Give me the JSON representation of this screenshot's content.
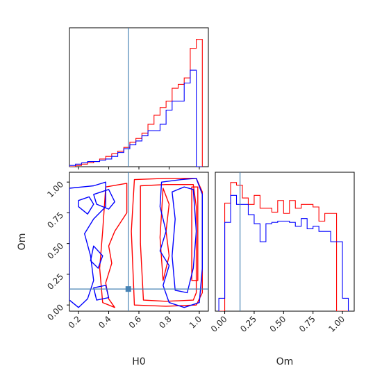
{
  "chart_data": {
    "type": "corner",
    "parameters": [
      "H0",
      "Om"
    ],
    "truth": {
      "H0": 0.53,
      "Om": 0.13
    },
    "colors": {
      "series_a": "#ff0000",
      "series_b": "#0000ff",
      "truth": "#4682b4",
      "axes": "#000000"
    },
    "panels": [
      {
        "id": "h0-hist",
        "type": "step-histogram",
        "xlim": [
          0.14,
          1.06
        ],
        "ylim": [
          0,
          1.08
        ],
        "bin_edges": [
          0.14,
          0.18,
          0.22,
          0.26,
          0.3,
          0.34,
          0.38,
          0.42,
          0.46,
          0.5,
          0.54,
          0.58,
          0.62,
          0.66,
          0.7,
          0.74,
          0.78,
          0.82,
          0.86,
          0.9,
          0.94,
          0.98,
          1.02
        ],
        "series": [
          {
            "key": "series_a",
            "values": [
              0.0,
              0.01,
              0.02,
              0.03,
              0.04,
              0.06,
              0.08,
              0.1,
              0.12,
              0.15,
              0.19,
              0.22,
              0.26,
              0.33,
              0.4,
              0.46,
              0.51,
              0.61,
              0.64,
              0.69,
              0.92,
              0.99
            ]
          },
          {
            "key": "series_b",
            "values": [
              0.01,
              0.02,
              0.03,
              0.04,
              0.04,
              0.05,
              0.06,
              0.08,
              0.11,
              0.14,
              0.17,
              0.2,
              0.24,
              0.28,
              0.28,
              0.33,
              0.44,
              0.51,
              0.51,
              0.65,
              0.75,
              0.0
            ]
          }
        ]
      },
      {
        "id": "h0-om-contour",
        "type": "contour",
        "xlim": [
          0.14,
          1.06
        ],
        "ylim": [
          -0.05,
          1.08
        ],
        "x_ticks": [
          "0.2",
          "0.4",
          "0.6",
          "0.8",
          "1.0"
        ],
        "x_tick_values": [
          0.2,
          0.4,
          0.6,
          0.8,
          1.0
        ],
        "y_ticks": [
          "0.00",
          "0.25",
          "0.50",
          "0.75",
          "1.00"
        ],
        "y_tick_values": [
          0,
          0.25,
          0.5,
          0.75,
          1.0
        ],
        "series": [
          {
            "key": "series_a",
            "contours": [
              [
                [
                  0.57,
                  1.02
                ],
                [
                  0.78,
                  1.03
                ],
                [
                  0.98,
                  1.03
                ],
                [
                  1.02,
                  0.92
                ],
                [
                  1.02,
                  0.1
                ],
                [
                  0.98,
                  0.0
                ],
                [
                  0.78,
                  -0.01
                ],
                [
                  0.57,
                  0.0
                ],
                [
                  0.55,
                  0.6
                ],
                [
                  0.57,
                  1.02
                ]
              ],
              [
                [
                  0.61,
                  0.97
                ],
                [
                  0.78,
                  0.98
                ],
                [
                  0.96,
                  0.98
                ],
                [
                  0.98,
                  0.8
                ],
                [
                  0.98,
                  0.1
                ],
                [
                  0.96,
                  0.04
                ],
                [
                  0.78,
                  0.03
                ],
                [
                  0.63,
                  0.04
                ],
                [
                  0.61,
                  0.5
                ],
                [
                  0.61,
                  0.97
                ]
              ],
              [
                [
                  0.38,
                  0.96
                ],
                [
                  0.52,
                  0.99
                ],
                [
                  0.52,
                  0.75
                ],
                [
                  0.44,
                  0.6
                ],
                [
                  0.4,
                  0.48
                ],
                [
                  0.42,
                  0.34
                ],
                [
                  0.38,
                  0.18
                ],
                [
                  0.4,
                  0.05
                ],
                [
                  0.44,
                  -0.02
                ],
                [
                  0.36,
                  0.02
                ],
                [
                  0.34,
                  0.3
                ],
                [
                  0.36,
                  0.6
                ],
                [
                  0.38,
                  0.96
                ]
              ],
              [
                [
                  0.76,
                  0.95
                ],
                [
                  0.8,
                  0.82
                ],
                [
                  0.78,
                  0.6
                ],
                [
                  0.8,
                  0.4
                ],
                [
                  0.76,
                  0.2
                ],
                [
                  0.74,
                  0.55
                ],
                [
                  0.76,
                  0.95
                ]
              ],
              [
                [
                  0.95,
                  0.96
                ],
                [
                  0.99,
                  0.96
                ],
                [
                  0.99,
                  0.2
                ],
                [
                  0.95,
                  0.2
                ],
                [
                  0.95,
                  0.96
                ]
              ]
            ]
          },
          {
            "key": "series_b",
            "contours": [
              [
                [
                  0.14,
                  0.95
                ],
                [
                  0.3,
                  0.97
                ],
                [
                  0.38,
                  1.0
                ],
                [
                  0.38,
                  0.8
                ],
                [
                  0.3,
                  0.7
                ],
                [
                  0.24,
                  0.58
                ],
                [
                  0.28,
                  0.4
                ],
                [
                  0.3,
                  0.2
                ],
                [
                  0.26,
                  0.05
                ],
                [
                  0.2,
                  -0.02
                ],
                [
                  0.14,
                  0.04
                ],
                [
                  0.14,
                  0.95
                ]
              ],
              [
                [
                  0.2,
                  0.85
                ],
                [
                  0.27,
                  0.88
                ],
                [
                  0.3,
                  0.82
                ],
                [
                  0.26,
                  0.74
                ],
                [
                  0.2,
                  0.8
                ],
                [
                  0.2,
                  0.85
                ]
              ],
              [
                [
                  0.3,
                  0.9
                ],
                [
                  0.4,
                  0.94
                ],
                [
                  0.44,
                  0.84
                ],
                [
                  0.4,
                  0.78
                ],
                [
                  0.32,
                  0.82
                ],
                [
                  0.3,
                  0.9
                ]
              ],
              [
                [
                  0.3,
                  0.48
                ],
                [
                  0.36,
                  0.4
                ],
                [
                  0.33,
                  0.3
                ],
                [
                  0.28,
                  0.36
                ],
                [
                  0.3,
                  0.48
                ]
              ],
              [
                [
                  0.3,
                  0.14
                ],
                [
                  0.38,
                  0.16
                ],
                [
                  0.4,
                  0.06
                ],
                [
                  0.32,
                  0.04
                ],
                [
                  0.3,
                  0.14
                ]
              ],
              [
                [
                  0.75,
                  1.0
                ],
                [
                  0.88,
                  1.02
                ],
                [
                  0.98,
                  1.03
                ],
                [
                  1.02,
                  0.9
                ],
                [
                  1.02,
                  0.3
                ],
                [
                  1.0,
                  0.02
                ],
                [
                  0.9,
                  -0.02
                ],
                [
                  0.8,
                  0.02
                ],
                [
                  0.76,
                  0.16
                ],
                [
                  0.8,
                  0.32
                ],
                [
                  0.74,
                  0.44
                ],
                [
                  0.78,
                  0.6
                ],
                [
                  0.74,
                  0.8
                ],
                [
                  0.75,
                  1.0
                ]
              ],
              [
                [
                  0.82,
                  0.92
                ],
                [
                  0.9,
                  0.96
                ],
                [
                  0.96,
                  0.94
                ],
                [
                  0.98,
                  0.6
                ],
                [
                  0.96,
                  0.3
                ],
                [
                  0.92,
                  0.1
                ],
                [
                  0.84,
                  0.12
                ],
                [
                  0.82,
                  0.4
                ],
                [
                  0.84,
                  0.7
                ],
                [
                  0.82,
                  0.92
                ]
              ]
            ]
          }
        ]
      },
      {
        "id": "om-hist",
        "type": "step-histogram",
        "xlim": [
          -0.08,
          1.1
        ],
        "ylim": [
          0,
          1.08
        ],
        "x_ticks": [
          "0.00",
          "0.25",
          "0.50",
          "0.75",
          "1.00"
        ],
        "x_tick_values": [
          0,
          0.25,
          0.5,
          0.75,
          1.0
        ],
        "bin_edges": [
          -0.05,
          0.0,
          0.05,
          0.1,
          0.15,
          0.2,
          0.25,
          0.3,
          0.35,
          0.4,
          0.45,
          0.5,
          0.55,
          0.6,
          0.65,
          0.7,
          0.75,
          0.8,
          0.85,
          0.9,
          0.95,
          1.0,
          1.05
        ],
        "series": [
          {
            "key": "series_a",
            "values": [
              0.0,
              0.84,
              1.0,
              0.98,
              0.88,
              0.83,
              0.9,
              0.8,
              0.8,
              0.77,
              0.86,
              0.76,
              0.86,
              0.8,
              0.83,
              0.83,
              0.81,
              0.7,
              0.76,
              0.76,
              0.0,
              0.0
            ]
          },
          {
            "key": "series_b",
            "values": [
              0.1,
              0.69,
              0.9,
              0.83,
              0.83,
              0.75,
              0.68,
              0.54,
              0.68,
              0.69,
              0.7,
              0.7,
              0.69,
              0.66,
              0.72,
              0.64,
              0.66,
              0.62,
              0.62,
              0.54,
              0.54,
              0.1
            ]
          }
        ]
      }
    ]
  },
  "labels": {
    "x_h0": "H0",
    "y_om": "Om",
    "x_om": "Om"
  }
}
